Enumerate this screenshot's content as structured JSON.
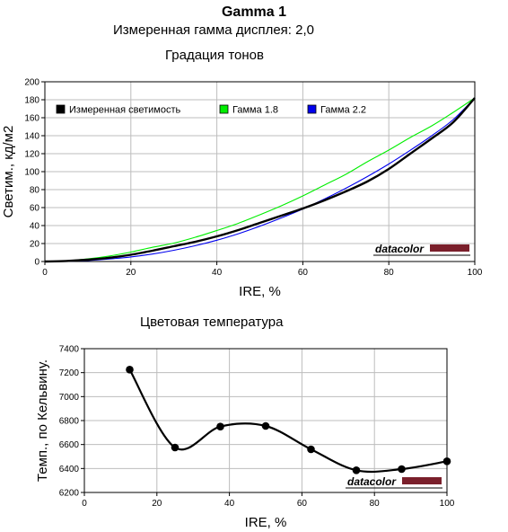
{
  "header": {
    "title": "Gamma 1",
    "subtitle": "Измеренная гамма дисплея: 2,0"
  },
  "watermark": {
    "text": "datacolor",
    "bar_color": "#7a1f2b"
  },
  "colors": {
    "measured": "#000000",
    "gamma18": "#00ee00",
    "gamma22": "#0000ee",
    "grid": "#bdbdbd"
  },
  "chart_data": [
    {
      "type": "line",
      "title": "Градация тонов",
      "xlabel": "IRE, %",
      "ylabel": "Светим., кд/м2",
      "xlim": [
        0,
        100
      ],
      "ylim": [
        0,
        200
      ],
      "xticks": [
        0,
        20,
        40,
        60,
        80,
        100
      ],
      "yticks": [
        0,
        20,
        40,
        60,
        80,
        100,
        120,
        140,
        160,
        180,
        200
      ],
      "grid": true,
      "legend_position": "top",
      "series": [
        {
          "name": "Измеренная светимость",
          "color": "#000000",
          "x": [
            0,
            5,
            10,
            15,
            20,
            25,
            30,
            35,
            40,
            45,
            50,
            55,
            60,
            65,
            70,
            75,
            80,
            85,
            90,
            95,
            100
          ],
          "y": [
            0,
            0.6,
            2,
            4.2,
            7.5,
            12,
            17,
            22,
            28,
            35,
            43,
            51,
            59,
            68,
            78,
            89,
            103,
            120,
            137,
            155,
            182
          ]
        },
        {
          "name": "Гамма 1.8",
          "color": "#00ee00",
          "x": [
            0,
            5,
            10,
            15,
            20,
            25,
            30,
            35,
            40,
            45,
            50,
            55,
            60,
            65,
            70,
            75,
            80,
            85,
            90,
            95,
            100
          ],
          "y": [
            0,
            0.8,
            2.9,
            6.1,
            10.5,
            15.8,
            20.5,
            27,
            34.5,
            42.5,
            52,
            62,
            73,
            85,
            97,
            111,
            124,
            138,
            151,
            166,
            182
          ]
        },
        {
          "name": "Гамма 2.2",
          "color": "#0000ee",
          "x": [
            0,
            5,
            10,
            15,
            20,
            25,
            30,
            35,
            40,
            45,
            50,
            55,
            60,
            65,
            70,
            75,
            80,
            85,
            90,
            95,
            100
          ],
          "y": [
            0,
            0.3,
            1.1,
            2.8,
            5.1,
            8.3,
            12.5,
            17.6,
            23.7,
            30.9,
            39.3,
            48.5,
            58.4,
            69.5,
            81.5,
            94.5,
            108.5,
            123.8,
            140,
            158,
            182
          ]
        }
      ]
    },
    {
      "type": "line",
      "title": "Цветовая температура",
      "xlabel": "IRE, %",
      "ylabel": "Темп., по Кельвину.",
      "xlim": [
        0,
        100
      ],
      "ylim": [
        6200,
        7400
      ],
      "xticks": [
        0,
        20,
        40,
        60,
        80,
        100
      ],
      "yticks": [
        6200,
        6400,
        6600,
        6800,
        7000,
        7200,
        7400
      ],
      "grid": true,
      "series": [
        {
          "color": "#000000",
          "x": [
            12.5,
            25,
            37.5,
            50,
            62.5,
            75,
            87.5,
            100
          ],
          "y": [
            7225,
            6575,
            6750,
            6755,
            6560,
            6385,
            6395,
            6460
          ]
        }
      ]
    }
  ]
}
